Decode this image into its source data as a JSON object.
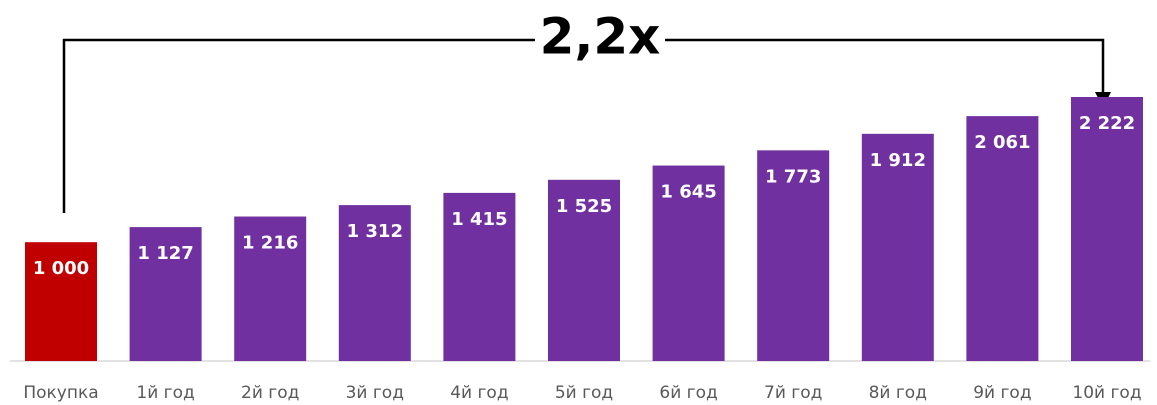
{
  "chart_data": {
    "type": "bar",
    "annotation": "2,2x",
    "categories": [
      "Покупка",
      "1й год",
      "2й год",
      "3й год",
      "4й год",
      "5й год",
      "6й год",
      "7й год",
      "8й год",
      "9й год",
      "10й год"
    ],
    "values": [
      1000,
      1127,
      1216,
      1312,
      1415,
      1525,
      1645,
      1773,
      1912,
      2061,
      2222
    ],
    "value_labels": [
      "1 000",
      "1 127",
      "1 216",
      "1 312",
      "1 415",
      "1 525",
      "1 645",
      "1 773",
      "1 912",
      "2 061",
      "2 222"
    ],
    "colors": [
      "#c00000",
      "#7030a0",
      "#7030a0",
      "#7030a0",
      "#7030a0",
      "#7030a0",
      "#7030a0",
      "#7030a0",
      "#7030a0",
      "#7030a0",
      "#7030a0"
    ]
  }
}
